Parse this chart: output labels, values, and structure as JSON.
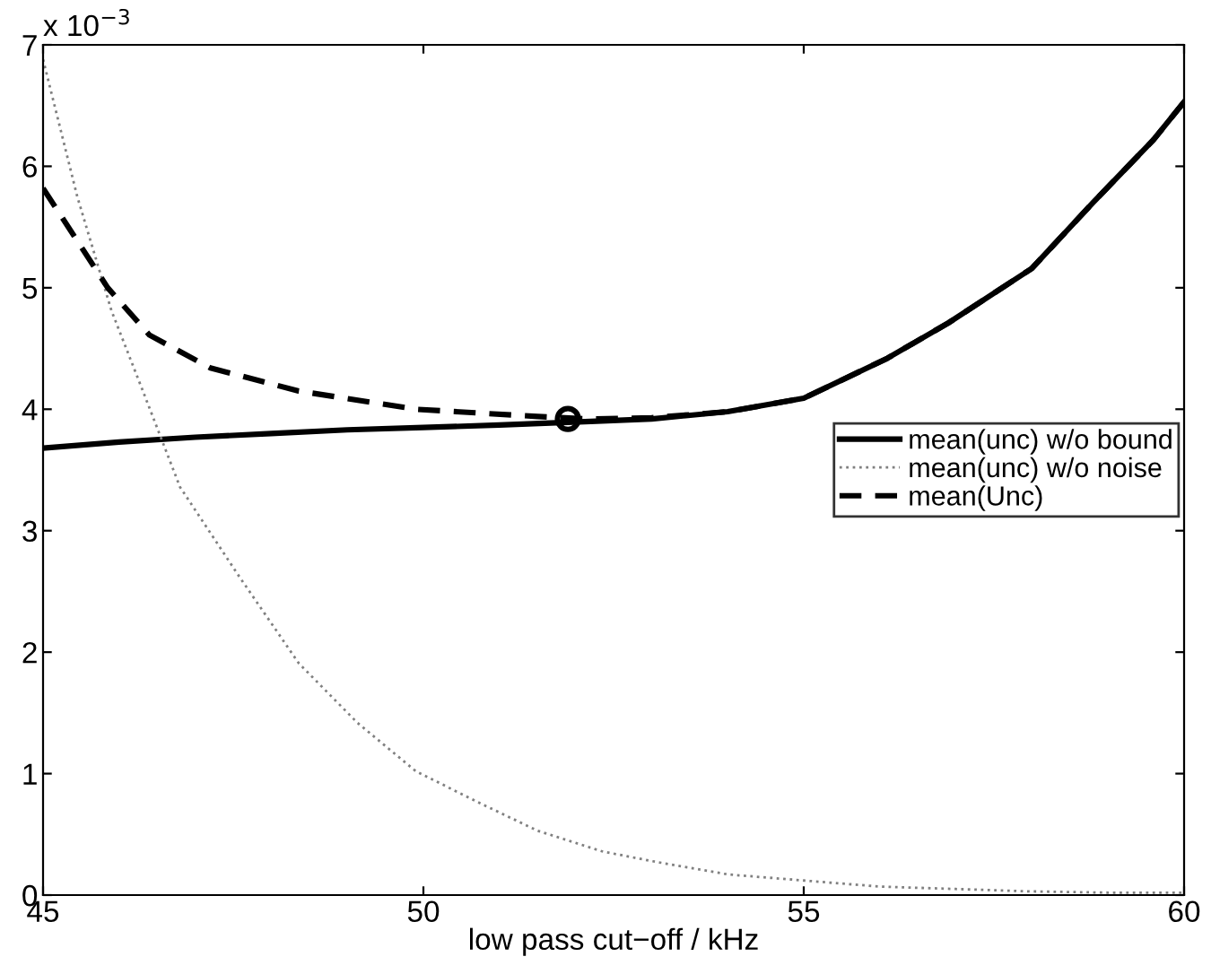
{
  "chart_data": {
    "type": "line",
    "xlabel": "low pass cut−off / kHz",
    "annotations": [
      "x 10$^{−3}$"
    ],
    "xlim": [
      45,
      60
    ],
    "xticks": [
      45,
      50,
      55,
      60
    ],
    "ylim": [
      0,
      7
    ],
    "yticks": [
      0,
      1,
      2,
      3,
      4,
      5,
      6,
      7
    ],
    "legend": "right",
    "grid": false,
    "series": [
      {
        "name": "mean(unc) w/o bound",
        "color": "#000000",
        "line_style": "solid",
        "x": [
          45,
          46,
          47,
          48,
          49,
          50,
          51,
          52.2,
          53,
          54,
          55,
          56.1,
          56.9,
          58,
          58.8,
          59.6,
          60
        ],
        "values": [
          3.68,
          3.73,
          3.77,
          3.8,
          3.83,
          3.85,
          3.87,
          3.9,
          3.92,
          3.98,
          4.09,
          4.42,
          4.71,
          5.16,
          5.7,
          6.22,
          6.53
        ]
      },
      {
        "name": "mean(unc) w/o noise",
        "color": "#808080",
        "line_style": "dotted",
        "x": [
          45,
          45.45,
          45.9,
          46.3,
          46.8,
          47.56,
          48.36,
          49.13,
          49.9,
          50.7,
          51.5,
          52.35,
          53,
          54,
          55,
          56,
          57,
          58,
          59,
          60
        ],
        "values": [
          6.88,
          5.75,
          4.81,
          4.17,
          3.36,
          2.64,
          1.91,
          1.42,
          1.02,
          0.77,
          0.53,
          0.36,
          0.28,
          0.17,
          0.12,
          0.07,
          0.05,
          0.03,
          0.02,
          0.02
        ]
      },
      {
        "name": "mean(Unc)",
        "color": "#000000",
        "line_style": "dashed",
        "x": [
          45,
          45.85,
          46.4,
          47.2,
          48.36,
          49.9,
          51.5,
          52.2,
          53,
          54,
          55,
          56.1,
          56.9,
          58,
          58.8,
          59.6,
          60
        ],
        "values": [
          5.82,
          5.0,
          4.61,
          4.34,
          4.15,
          4.0,
          3.94,
          3.92,
          3.93,
          3.98,
          4.09,
          4.42,
          4.71,
          5.16,
          5.7,
          6.22,
          6.53
        ]
      },
      {
        "type": "scatter",
        "color": "#000000",
        "marker": "circle",
        "x": [
          51.9
        ],
        "values": [
          3.92
        ]
      }
    ]
  }
}
